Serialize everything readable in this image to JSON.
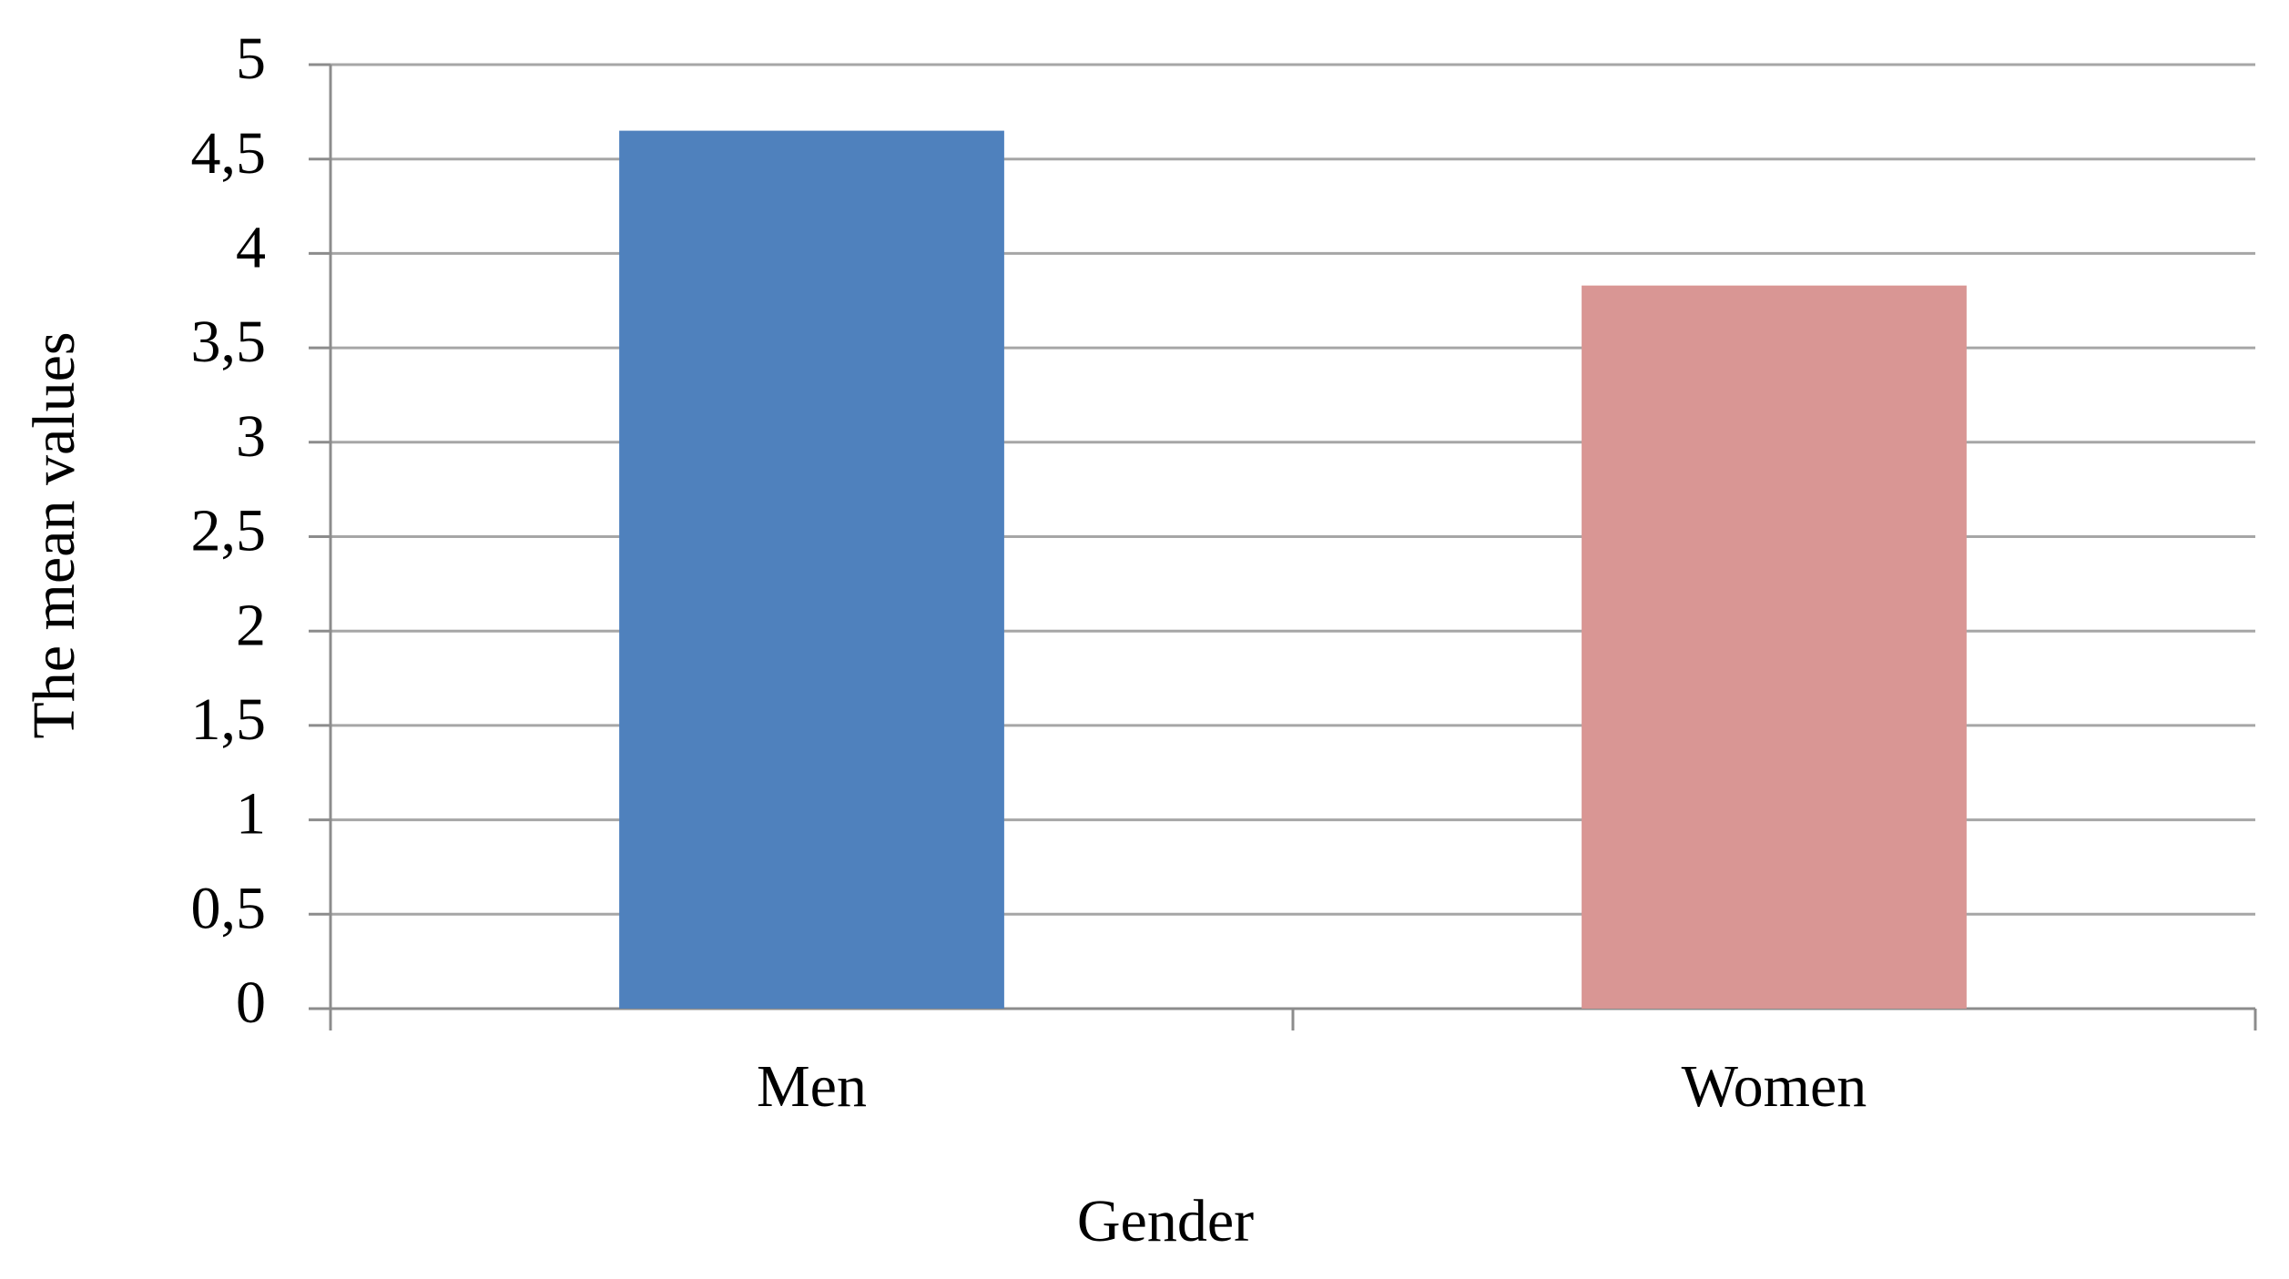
{
  "chart_data": {
    "type": "bar",
    "x_label": "Gender",
    "y_label": "The mean values",
    "categories": [
      "Men",
      "Women"
    ],
    "values": [
      4.65,
      3.83
    ],
    "colors": [
      "#4f81bd",
      "#d99694"
    ],
    "ylim": [
      0,
      5
    ],
    "yticks": [
      0,
      {
        "value": 0.5,
        "label": "0,5"
      },
      1,
      {
        "value": 1.5,
        "label": "1,5"
      },
      2,
      {
        "value": 2.5,
        "label": "2,5"
      },
      3,
      {
        "value": 3.5,
        "label": "3,5"
      },
      4,
      {
        "value": 4.5,
        "label": "4,5"
      },
      5
    ],
    "grid": true
  }
}
